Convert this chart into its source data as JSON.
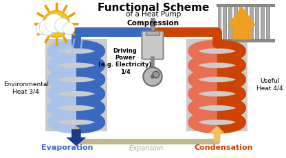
{
  "title": "Functional Scheme",
  "subtitle": "of a Heat Pump",
  "bg_color": "#ffffff",
  "compression_label": "Compression",
  "expansion_label": "Expansion",
  "evaporation_label": "Evaporation",
  "condensation_label": "Condensation",
  "env_heat_label": "Environmental\nHeat 3/4",
  "useful_heat_label": "Useful\nHeat 4/4",
  "driving_power_label": "Driving\nPower\n(e.g. Electricity)\n1/4",
  "blue_dark": "#1a3a8a",
  "blue_mid": "#3a6abf",
  "blue_light": "#a8c4e8",
  "red_dark": "#aa2200",
  "red_mid": "#cc4400",
  "red_light": "#e87050",
  "orange_color": "#f0a020",
  "orange_light": "#f5c060",
  "expansion_color": "#c0b88a",
  "radiator_color": "#888888",
  "sun_color": "#f5c518",
  "sun_ray_color": "#e8a000",
  "machine_color": "#aaaaaa",
  "machine_dark": "#777777",
  "panel_color": "#cccccc"
}
